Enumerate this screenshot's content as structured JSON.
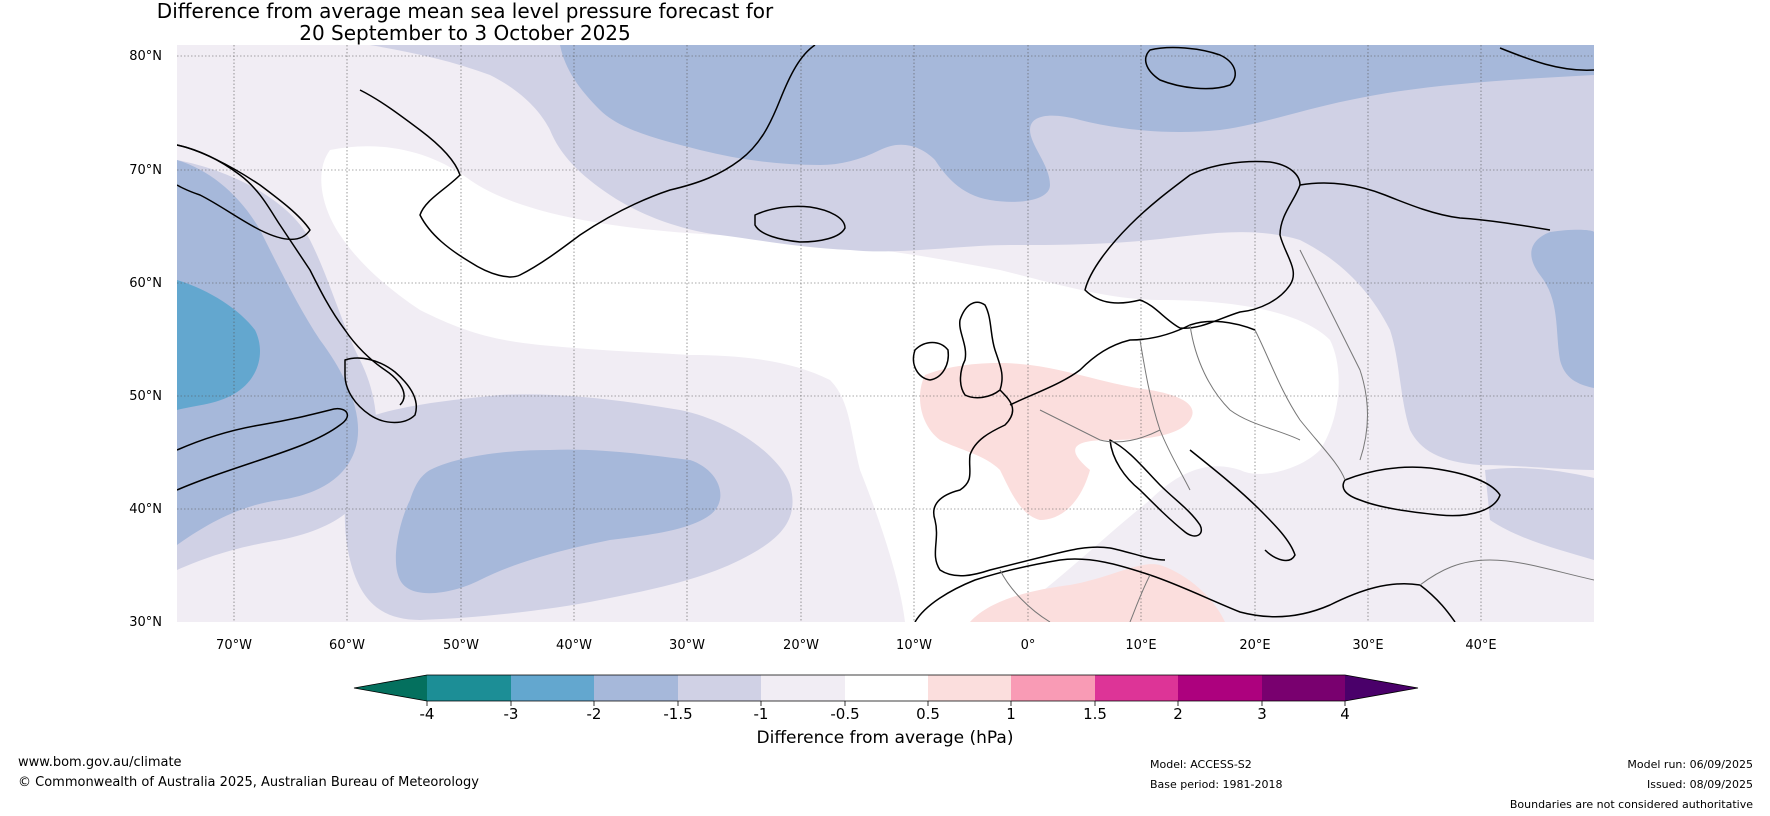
{
  "title": {
    "line1": "Difference from average mean sea level pressure forecast for",
    "line2": "20 September to 3 October 2025"
  },
  "map": {
    "lat_labels": [
      "80°N",
      "70°N",
      "60°N",
      "50°N",
      "40°N",
      "30°N"
    ],
    "lon_labels": [
      "70°W",
      "60°W",
      "50°W",
      "40°W",
      "30°W",
      "20°W",
      "10°W",
      "0°",
      "10°E",
      "20°E",
      "30°E",
      "40°E"
    ],
    "lat_range": [
      30,
      80
    ],
    "lon_range": [
      -75,
      50
    ]
  },
  "colorbar": {
    "caption": "Difference from average (hPa)",
    "ticks": [
      "-4",
      "-3",
      "-2",
      "-1.5",
      "-1",
      "-0.5",
      "0.5",
      "1",
      "1.5",
      "2",
      "3",
      "4"
    ],
    "colors": {
      "lt_neg4": "#04705e",
      "neg4_neg3": "#1c8e96",
      "neg3_neg2": "#63a7cf",
      "neg2_neg1_5": "#a6b8da",
      "neg1_5_neg1": "#d0d1e5",
      "neg1_neg0_5": "#f1edf4",
      "neg0_5_0_5": "#ffffff",
      "0_5_1": "#fbdedd",
      "1_1_5": "#f99bb5",
      "1_5_2": "#dd3497",
      "2_3": "#ad017e",
      "3_4": "#79006f",
      "gt_4": "#4a006a"
    }
  },
  "footer": {
    "url": "www.bom.gov.au/climate",
    "copyright": "© Commonwealth of Australia 2025, Australian Bureau of Meteorology",
    "model": "Model: ACCESS-S2",
    "base_period": "Base period: 1981-2018",
    "model_run": "Model run: 06/09/2025",
    "issued": "Issued: 08/09/2025",
    "boundaries_note": "Boundaries are not considered authoritative"
  }
}
